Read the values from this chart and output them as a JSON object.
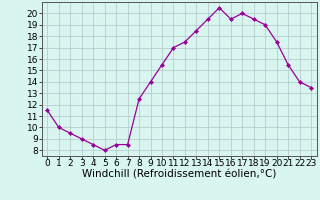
{
  "x": [
    0,
    1,
    2,
    3,
    4,
    5,
    6,
    7,
    8,
    9,
    10,
    11,
    12,
    13,
    14,
    15,
    16,
    17,
    18,
    19,
    20,
    21,
    22,
    23
  ],
  "y": [
    11.5,
    10.0,
    9.5,
    9.0,
    8.5,
    8.0,
    8.5,
    8.5,
    12.5,
    14.0,
    15.5,
    17.0,
    17.5,
    18.5,
    19.5,
    20.5,
    19.5,
    20.0,
    19.5,
    19.0,
    17.5,
    15.5,
    14.0,
    13.5
  ],
  "line_color": "#990099",
  "marker": "D",
  "marker_size": 2.0,
  "bg_color": "#d8f5f0",
  "grid_color": "#b0c8c8",
  "xlabel": "Windchill (Refroidissement éolien,°C)",
  "xlabel_fontsize": 7.5,
  "ylabel_ticks": [
    8,
    9,
    10,
    11,
    12,
    13,
    14,
    15,
    16,
    17,
    18,
    19,
    20
  ],
  "ylim": [
    7.5,
    21.0
  ],
  "xlim": [
    -0.5,
    23.5
  ],
  "tick_fontsize": 6.5,
  "linewidth": 0.9
}
